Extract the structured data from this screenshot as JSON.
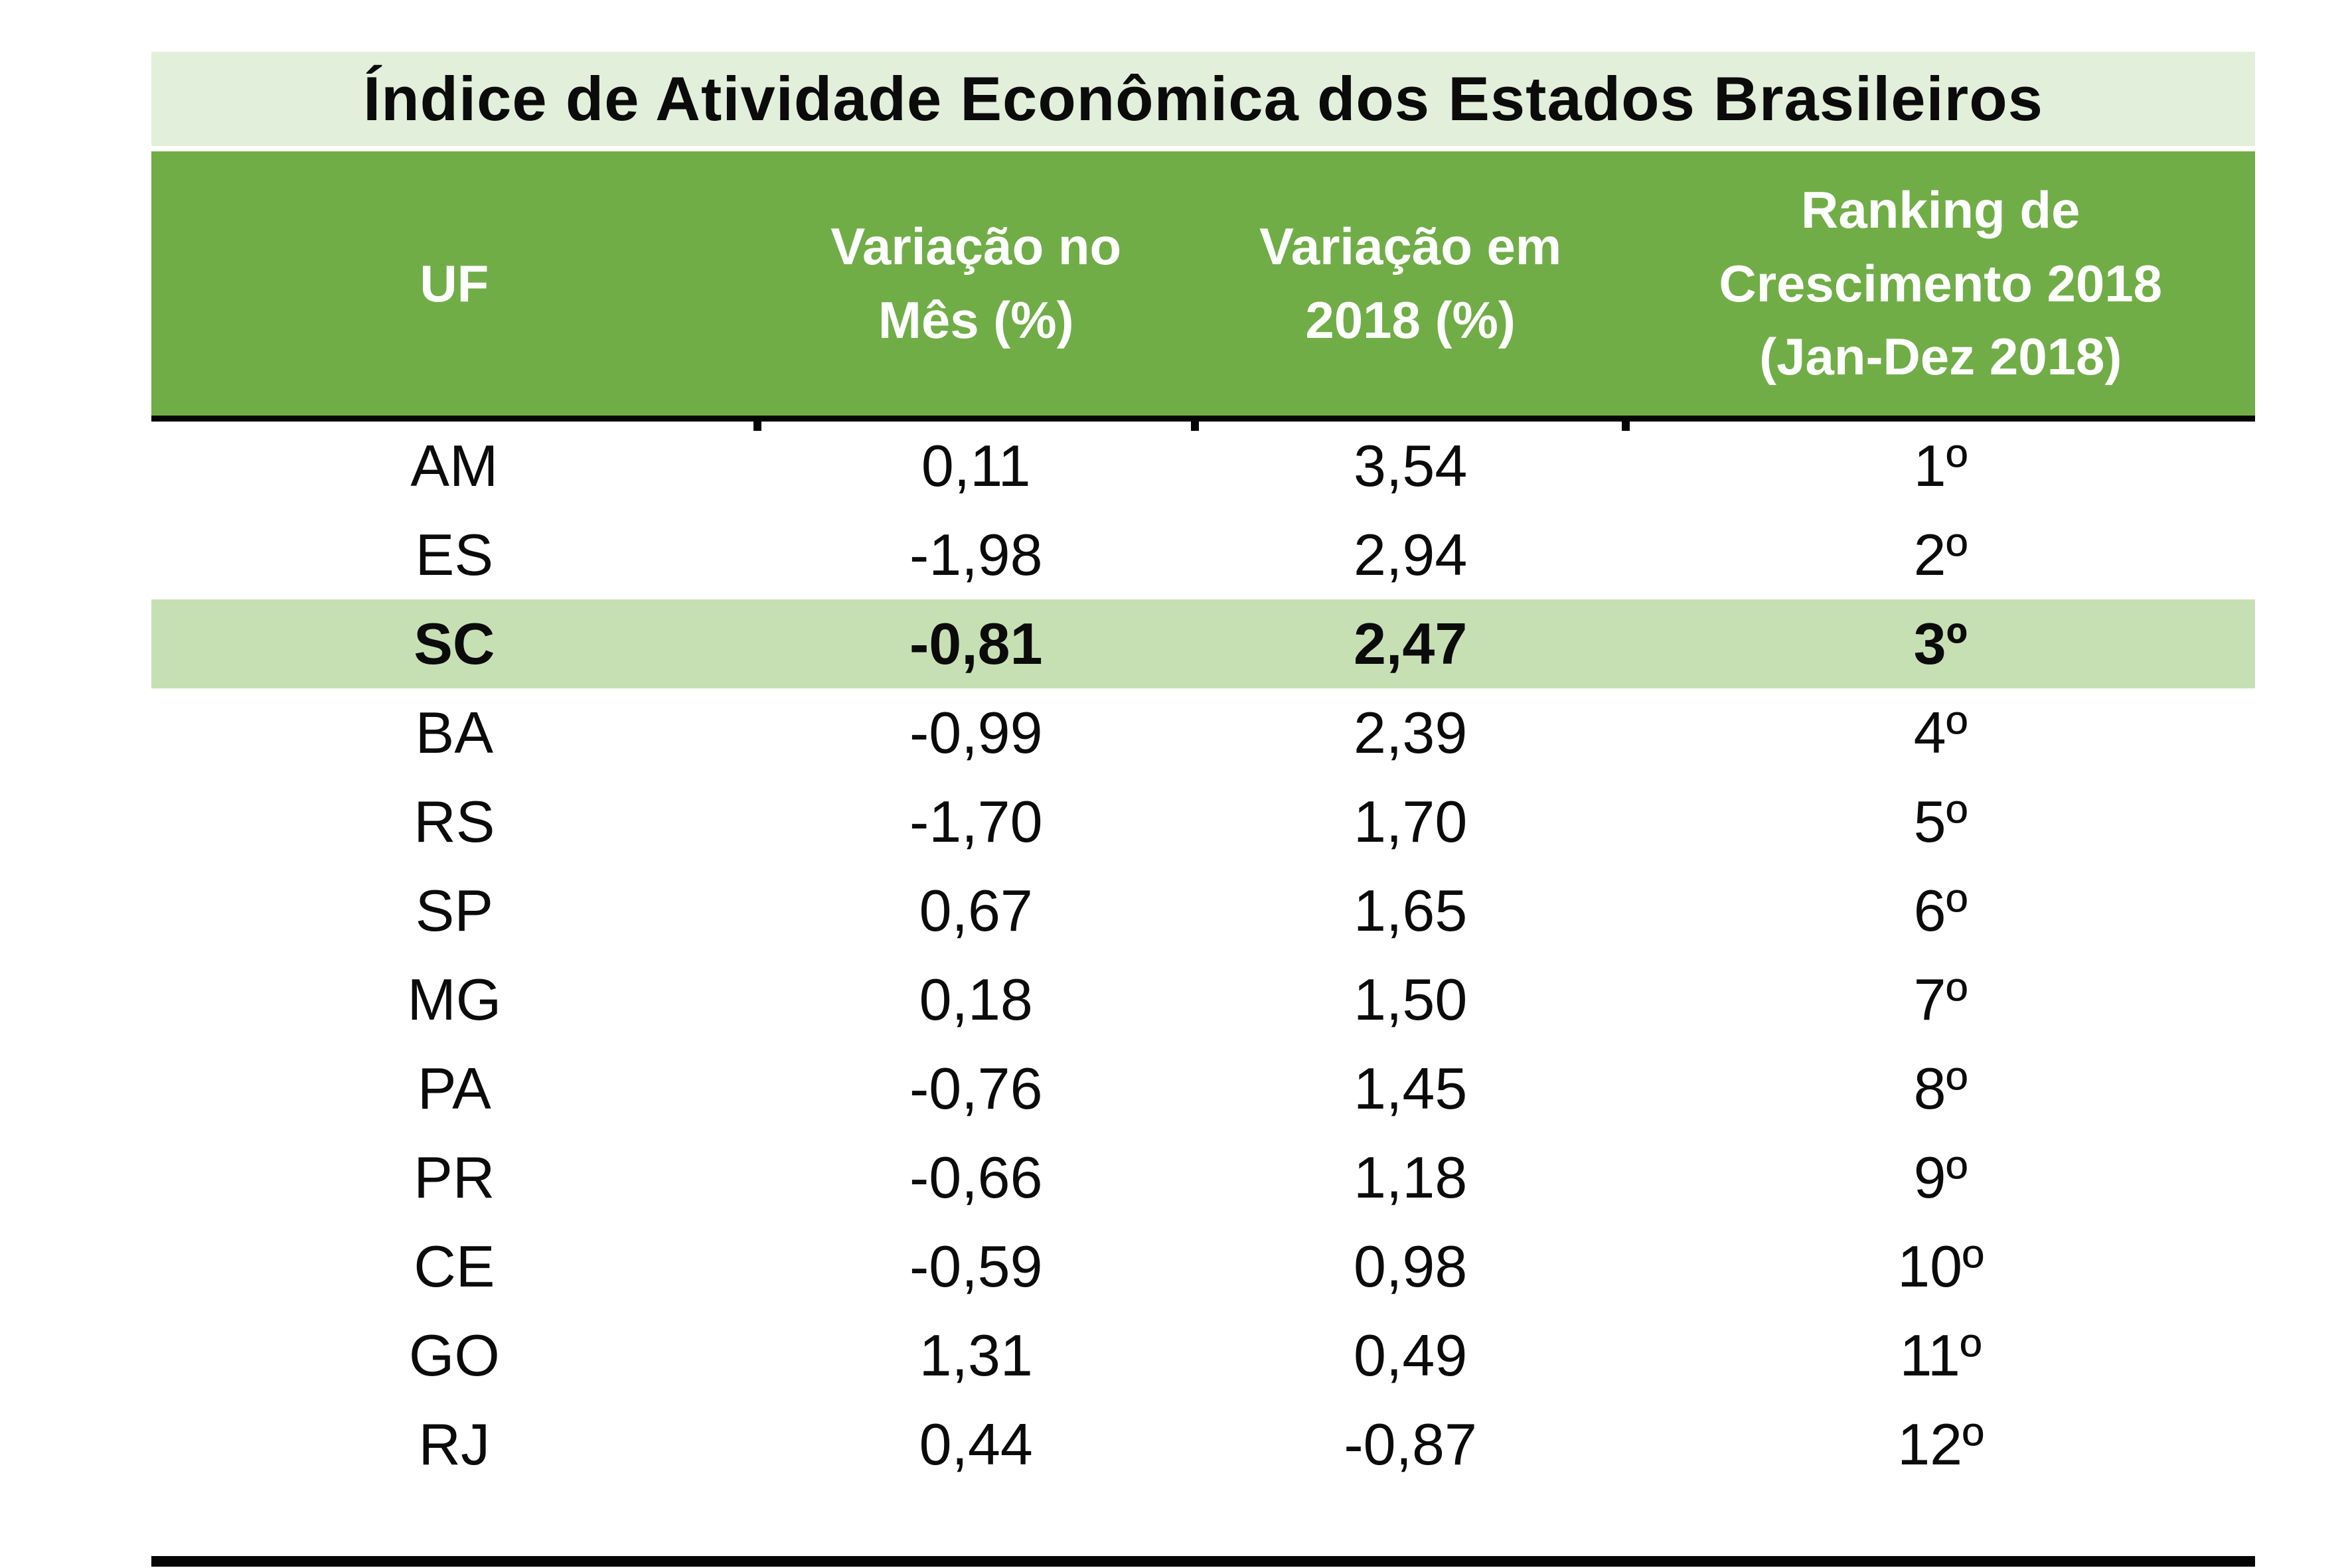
{
  "table": {
    "title": "Índice de Atividade Econômica dos Estados Brasileiros",
    "columns": {
      "uf": "UF",
      "mes": "Variação no\nMês (%)",
      "ano": "Variação em\n2018 (%)",
      "rank": "Ranking  de\nCrescimento 2018\n(Jan-Dez 2018)"
    },
    "rows": [
      {
        "uf": "AM",
        "mes": "0,11",
        "ano": "3,54",
        "rank": "1º"
      },
      {
        "uf": "ES",
        "mes": "-1,98",
        "ano": "2,94",
        "rank": "2º"
      },
      {
        "uf": "SC",
        "mes": "-0,81",
        "ano": "2,47",
        "rank": "3º"
      },
      {
        "uf": "BA",
        "mes": "-0,99",
        "ano": "2,39",
        "rank": "4º"
      },
      {
        "uf": "RS",
        "mes": "-1,70",
        "ano": "1,70",
        "rank": "5º"
      },
      {
        "uf": "SP",
        "mes": "0,67",
        "ano": "1,65",
        "rank": "6º"
      },
      {
        "uf": "MG",
        "mes": "0,18",
        "ano": "1,50",
        "rank": "7º"
      },
      {
        "uf": "PA",
        "mes": "-0,76",
        "ano": "1,45",
        "rank": "8º"
      },
      {
        "uf": "PR",
        "mes": "-0,66",
        "ano": "1,18",
        "rank": "9º"
      },
      {
        "uf": "CE",
        "mes": "-0,59",
        "ano": "0,98",
        "rank": "10º"
      },
      {
        "uf": "GO",
        "mes": "1,31",
        "ano": "0,49",
        "rank": "11º"
      },
      {
        "uf": "RJ",
        "mes": "0,44",
        "ano": "-0,87",
        "rank": "12º"
      }
    ],
    "highlighted_row": "SC",
    "colors": {
      "header_bg": "#70AD47",
      "title_bg": "#E2EFDA",
      "highlight_bg": "#C6E0B4",
      "header_text": "#FFFFFF",
      "body_text": "#0B0B0B",
      "rule": "#050505"
    }
  },
  "chart_data": {
    "type": "table",
    "title": "Índice de Atividade Econômica dos Estados Brasileiros",
    "columns": [
      "UF",
      "Variação no Mês (%)",
      "Variação em 2018 (%)",
      "Ranking de Crescimento 2018 (Jan-Dez 2018)"
    ],
    "categories": [
      "AM",
      "ES",
      "SC",
      "BA",
      "RS",
      "SP",
      "MG",
      "PA",
      "PR",
      "CE",
      "GO",
      "RJ"
    ],
    "series": [
      {
        "name": "Variação no Mês (%)",
        "values": [
          0.11,
          -1.98,
          -0.81,
          -0.99,
          -1.7,
          0.67,
          0.18,
          -0.76,
          -0.66,
          -0.59,
          1.31,
          0.44
        ]
      },
      {
        "name": "Variação em 2018 (%)",
        "values": [
          3.54,
          2.94,
          2.47,
          2.39,
          1.7,
          1.65,
          1.5,
          1.45,
          1.18,
          0.98,
          0.49,
          -0.87
        ]
      },
      {
        "name": "Ranking de Crescimento 2018 (Jan-Dez 2018)",
        "values": [
          1,
          2,
          3,
          4,
          5,
          6,
          7,
          8,
          9,
          10,
          11,
          12
        ]
      }
    ],
    "annotations": [
      "Row SC is highlighted in light green and bold (3º place)"
    ],
    "legend_position": "none",
    "grid": false
  }
}
